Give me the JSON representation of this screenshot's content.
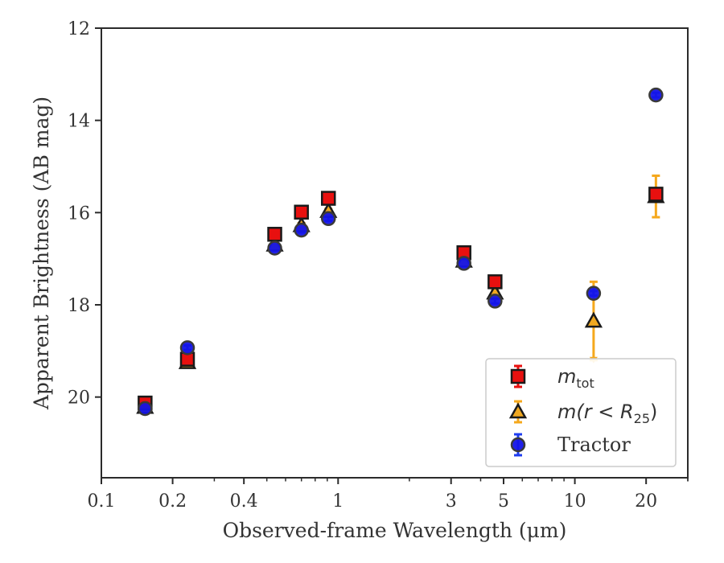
{
  "chart_data": {
    "type": "scatter",
    "xlabel": "Observed-frame Wavelength (μm)",
    "ylabel": "Apparent Brightness (AB mag)",
    "xscale": "log",
    "xlim": [
      0.1,
      30
    ],
    "ylim": [
      21.75,
      12
    ],
    "y_inverted": true,
    "x_ticks": [
      0.1,
      0.2,
      0.4,
      1,
      3,
      5,
      10,
      20
    ],
    "x_tick_labels": [
      "0.1",
      "0.2",
      "0.4",
      "1",
      "3",
      "5",
      "10",
      "20"
    ],
    "y_ticks": [
      12,
      14,
      16,
      18,
      20
    ],
    "y_tick_labels": [
      "12",
      "14",
      "16",
      "18",
      "20"
    ],
    "legend_position": "lower-right",
    "series": [
      {
        "name": "m_tot",
        "marker": "square",
        "color": "#e8100f",
        "edge": "#1a1a1a",
        "errcolor": "#e8100f",
        "points": [
          {
            "x": 0.153,
            "y": 20.13,
            "err": 0.05
          },
          {
            "x": 0.231,
            "y": 19.18,
            "err": 0.05
          },
          {
            "x": 0.54,
            "y": 16.47,
            "err": 0.05
          },
          {
            "x": 0.7,
            "y": 15.99,
            "err": 0.05
          },
          {
            "x": 0.91,
            "y": 15.69,
            "err": 0.05
          },
          {
            "x": 3.4,
            "y": 16.87,
            "err": 0.05
          },
          {
            "x": 4.6,
            "y": 17.5,
            "err": 0.05
          },
          {
            "x": 22,
            "y": 15.6,
            "err": 0.05
          }
        ]
      },
      {
        "name": "m(r < R25)",
        "marker": "triangle",
        "color": "#f0a820",
        "edge": "#1a1a1a",
        "errcolor": "#f5a81c",
        "points": [
          {
            "x": 0.153,
            "y": 20.22,
            "err": 0.05
          },
          {
            "x": 0.231,
            "y": 19.25,
            "err": 0.05
          },
          {
            "x": 0.54,
            "y": 16.7,
            "err": 0.05
          },
          {
            "x": 0.7,
            "y": 16.28,
            "err": 0.05
          },
          {
            "x": 0.91,
            "y": 15.97,
            "err": 0.05
          },
          {
            "x": 3.4,
            "y": 17.05,
            "err": 0.05
          },
          {
            "x": 4.6,
            "y": 17.74,
            "err": 0.05
          },
          {
            "x": 12,
            "y": 18.35,
            "err": 0.85,
            "upper_limit": true
          },
          {
            "x": 22,
            "y": 15.65,
            "err": 0.45
          }
        ]
      },
      {
        "name": "Tractor",
        "marker": "circle",
        "color": "#1414e8",
        "edge": "#3a3a3a",
        "errcolor": "#1e3cf0",
        "points": [
          {
            "x": 0.153,
            "y": 20.25,
            "err": 0.05
          },
          {
            "x": 0.231,
            "y": 18.93,
            "err": 0.05
          },
          {
            "x": 0.54,
            "y": 16.77,
            "err": 0.05
          },
          {
            "x": 0.7,
            "y": 16.38,
            "err": 0.05
          },
          {
            "x": 0.91,
            "y": 16.13,
            "err": 0.05
          },
          {
            "x": 3.4,
            "y": 17.1,
            "err": 0.05
          },
          {
            "x": 4.6,
            "y": 17.92,
            "err": 0.05
          },
          {
            "x": 12,
            "y": 17.75,
            "err": 0.05
          },
          {
            "x": 22,
            "y": 13.45,
            "err": 0.05
          }
        ]
      }
    ],
    "legend": [
      {
        "text": "m",
        "sub": "tot",
        "math": true
      },
      {
        "text": "m(r < R",
        "sub": "25",
        "suffix": ")",
        "math": true
      },
      {
        "text": "Tractor",
        "math": false
      }
    ]
  }
}
